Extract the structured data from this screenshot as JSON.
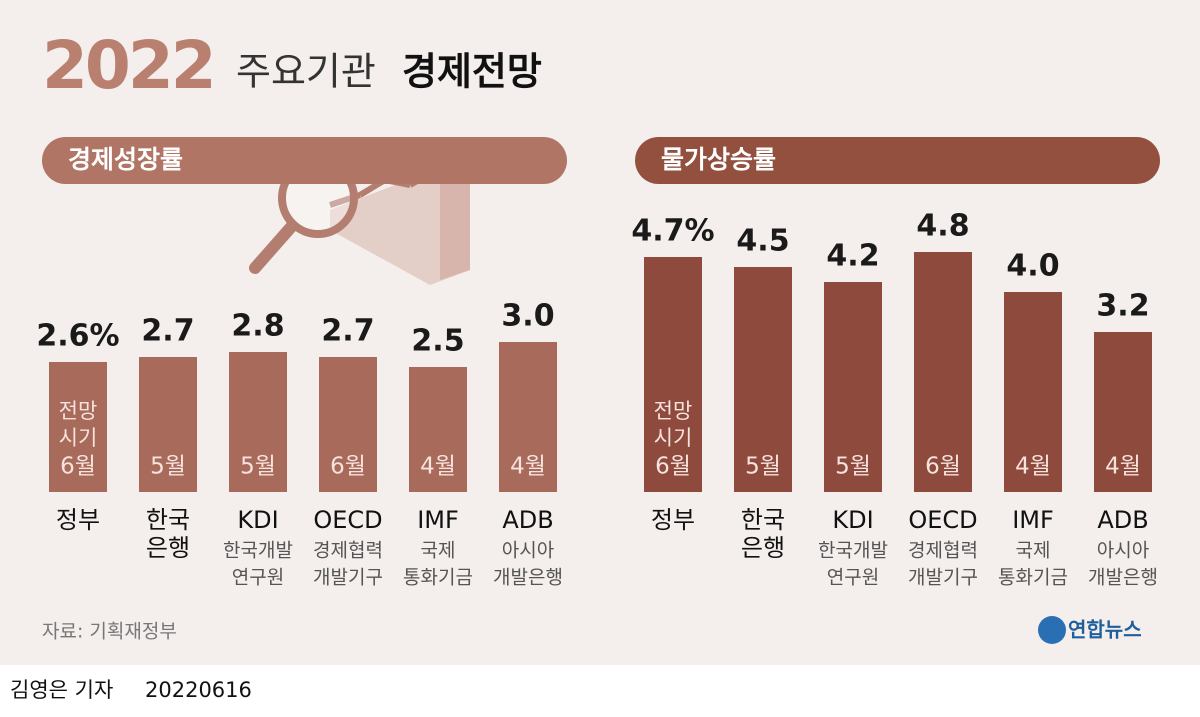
{
  "header": {
    "year": "2022",
    "subtitle": "주요기관",
    "title": "경제전망"
  },
  "chart_data": [
    {
      "type": "bar",
      "title": "경제성장률",
      "color": "#a86a5b",
      "title_color": "#b07565",
      "categories": [
        [
          "정부"
        ],
        [
          "한국",
          "은행"
        ],
        [
          "KDI"
        ],
        [
          "OECD"
        ],
        [
          "IMF"
        ],
        [
          "ADB"
        ]
      ],
      "category_notes": [
        [],
        [],
        [
          "한국개발",
          "연구원"
        ],
        [
          "경제협력",
          "개발기구"
        ],
        [
          "국제",
          "통화기금"
        ],
        [
          "아시아",
          "개발은행"
        ]
      ],
      "values": [
        2.6,
        2.7,
        2.8,
        2.7,
        2.5,
        3.0
      ],
      "value_labels": [
        "2.6%",
        "2.7",
        "2.8",
        "2.7",
        "2.5",
        "3.0"
      ],
      "months": [
        "6월",
        "5월",
        "5월",
        "6월",
        "4월",
        "4월"
      ],
      "month_caption": [
        "전망",
        "시기"
      ]
    },
    {
      "type": "bar",
      "title": "물가상승률",
      "color": "#8e4a3d",
      "title_color": "#93503f",
      "categories": [
        [
          "정부"
        ],
        [
          "한국",
          "은행"
        ],
        [
          "KDI"
        ],
        [
          "OECD"
        ],
        [
          "IMF"
        ],
        [
          "ADB"
        ]
      ],
      "category_notes": [
        [],
        [],
        [
          "한국개발",
          "연구원"
        ],
        [
          "경제협력",
          "개발기구"
        ],
        [
          "국제",
          "통화기금"
        ],
        [
          "아시아",
          "개발은행"
        ]
      ],
      "values": [
        4.7,
        4.5,
        4.2,
        4.8,
        4.0,
        3.2
      ],
      "value_labels": [
        "4.7%",
        "4.5",
        "4.2",
        "4.8",
        "4.0",
        "3.2"
      ],
      "months": [
        "6월",
        "5월",
        "5월",
        "6월",
        "4월",
        "4월"
      ],
      "month_caption": [
        "전망",
        "시기"
      ]
    }
  ],
  "source": "자료: 기획재정부",
  "logo": "연합뉴스",
  "byline": "김영은 기자",
  "date": "20220616"
}
